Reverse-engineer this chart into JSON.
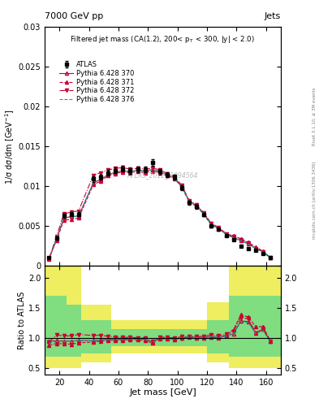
{
  "title_top": "7000 GeV pp",
  "title_right": "Jets",
  "annotation": "Filtered jet mass (CA(1.2), 200< p$_\\mathrm{T}$ < 300, |y| < 2.0)",
  "rivet_label": "Rivet 3.1.10, ≥ 3M events",
  "mcplots_label": "mcplots.cern.ch [arXiv:1306.3436]",
  "watermark": "ATLAS_2012_I1094564",
  "xlabel": "Jet mass [GeV]",
  "ylabel": "1/σ dσ/dm [GeV$^{-1}$]",
  "ylabel_ratio": "Ratio to ATLAS",
  "xlim": [
    10,
    170
  ],
  "ylim_main": [
    0,
    0.03
  ],
  "ylim_ratio": [
    0.4,
    2.2
  ],
  "yticks_main": [
    0,
    0.005,
    0.01,
    0.015,
    0.02,
    0.025,
    0.03
  ],
  "yticks_ratio": [
    0.5,
    1.0,
    1.5,
    2.0
  ],
  "atlas_x": [
    13,
    18,
    23,
    28,
    33,
    43,
    48,
    53,
    58,
    63,
    68,
    73,
    78,
    83,
    88,
    93,
    98,
    103,
    108,
    113,
    118,
    123,
    128,
    133,
    138,
    143,
    148,
    153,
    158,
    163
  ],
  "atlas_y": [
    0.001,
    0.0035,
    0.0063,
    0.0065,
    0.0065,
    0.0109,
    0.01115,
    0.0117,
    0.012,
    0.0122,
    0.01195,
    0.01215,
    0.0121,
    0.01295,
    0.01185,
    0.01145,
    0.01115,
    0.00985,
    0.00795,
    0.00745,
    0.00645,
    0.005,
    0.00465,
    0.0038,
    0.0033,
    0.00245,
    0.00218,
    0.002,
    0.00155,
    0.00105
  ],
  "atlas_yerr": [
    0.0001,
    0.0002,
    0.00025,
    0.00025,
    0.00025,
    0.00035,
    0.00035,
    0.00035,
    0.00035,
    0.00035,
    0.00035,
    0.00035,
    0.00035,
    0.0004,
    0.00035,
    0.00035,
    0.00035,
    0.0003,
    0.00025,
    0.00025,
    0.00022,
    0.00018,
    0.00018,
    0.00015,
    0.00013,
    0.00012,
    0.0001,
    0.0001,
    8e-05,
    6e-05
  ],
  "p370_x": [
    13,
    18,
    23,
    28,
    33,
    43,
    48,
    53,
    58,
    63,
    68,
    73,
    78,
    83,
    88,
    93,
    98,
    103,
    108,
    113,
    118,
    123,
    128,
    133,
    138,
    143,
    148,
    153,
    158,
    163
  ],
  "p370_y": [
    0.00095,
    0.00335,
    0.006,
    0.0062,
    0.00625,
    0.01045,
    0.01085,
    0.01145,
    0.01175,
    0.01195,
    0.01185,
    0.012,
    0.0119,
    0.0121,
    0.0119,
    0.01145,
    0.01105,
    0.0099,
    0.00815,
    0.00755,
    0.00655,
    0.00515,
    0.00475,
    0.00395,
    0.00355,
    0.00315,
    0.00278,
    0.00218,
    0.00178,
    0.001
  ],
  "p371_y": [
    0.00088,
    0.0032,
    0.0057,
    0.00585,
    0.006,
    0.0102,
    0.01065,
    0.0113,
    0.0116,
    0.0118,
    0.0117,
    0.01182,
    0.0117,
    0.0119,
    0.01175,
    0.0113,
    0.01095,
    0.00985,
    0.00805,
    0.00745,
    0.00645,
    0.0051,
    0.00465,
    0.004,
    0.00378,
    0.0034,
    0.00295,
    0.00238,
    0.00185,
    0.001
  ],
  "p372_y": [
    0.00094,
    0.00368,
    0.00655,
    0.00675,
    0.0069,
    0.0114,
    0.0117,
    0.01205,
    0.01224,
    0.01235,
    0.01215,
    0.01225,
    0.01215,
    0.01225,
    0.0121,
    0.0116,
    0.0112,
    0.0101,
    0.0082,
    0.00765,
    0.00665,
    0.0053,
    0.00485,
    0.00405,
    0.00368,
    0.0033,
    0.00288,
    0.00218,
    0.00178,
    0.001
  ],
  "p376_y": [
    0.00092,
    0.00332,
    0.00598,
    0.00618,
    0.00622,
    0.01042,
    0.01082,
    0.01142,
    0.01175,
    0.01194,
    0.01183,
    0.01198,
    0.01188,
    0.01208,
    0.01188,
    0.01142,
    0.01102,
    0.00988,
    0.00812,
    0.00752,
    0.00652,
    0.00513,
    0.00472,
    0.00393,
    0.00353,
    0.00313,
    0.00275,
    0.00215,
    0.00175,
    0.00098
  ],
  "color_370": "#cc0033",
  "color_371": "#cc0033",
  "color_372": "#cc0033",
  "color_376": "#00aaaa",
  "green_color": "#80dd80",
  "yellow_color": "#eeee60",
  "band_bins": [
    {
      "xlo": 10,
      "xhi": 25,
      "ylo": 0.5,
      "yhi": 2.2,
      "inner_lo": 0.7,
      "inner_hi": 1.7
    },
    {
      "xlo": 25,
      "xhi": 35,
      "ylo": 0.5,
      "yhi": 2.2,
      "inner_lo": 0.7,
      "inner_hi": 1.55
    },
    {
      "xlo": 35,
      "xhi": 55,
      "ylo": 0.6,
      "yhi": 1.55,
      "inner_lo": 0.75,
      "inner_hi": 1.3
    },
    {
      "xlo": 55,
      "xhi": 120,
      "ylo": 0.75,
      "yhi": 1.3,
      "inner_lo": 0.87,
      "inner_hi": 1.15
    },
    {
      "xlo": 120,
      "xhi": 135,
      "ylo": 0.6,
      "yhi": 1.6,
      "inner_lo": 0.75,
      "inner_hi": 1.3
    },
    {
      "xlo": 135,
      "xhi": 145,
      "ylo": 0.5,
      "yhi": 2.2,
      "inner_lo": 0.7,
      "inner_hi": 1.7
    },
    {
      "xlo": 145,
      "xhi": 170,
      "ylo": 0.5,
      "yhi": 2.2,
      "inner_lo": 0.7,
      "inner_hi": 1.7
    }
  ],
  "ratio_370": [
    0.95,
    0.957,
    0.952,
    0.954,
    0.962,
    0.959,
    0.974,
    0.979,
    0.979,
    0.98,
    0.992,
    0.988,
    0.983,
    0.934,
    1.004,
    1.0,
    0.991,
    1.005,
    1.025,
    1.013,
    1.016,
    1.03,
    1.022,
    1.039,
    1.076,
    1.286,
    1.275,
    1.09,
    1.148,
    0.952
  ],
  "ratio_371": [
    0.88,
    0.914,
    0.905,
    0.9,
    0.923,
    0.936,
    0.955,
    0.966,
    0.967,
    0.967,
    0.979,
    0.973,
    0.967,
    0.918,
    0.992,
    0.987,
    0.982,
    1.0,
    1.013,
    1.0,
    1.0,
    1.02,
    1.0,
    1.053,
    1.145,
    1.388,
    1.353,
    1.19,
    1.194,
    0.952
  ],
  "ratio_372": [
    0.94,
    1.051,
    1.04,
    1.038,
    1.062,
    1.046,
    1.049,
    1.03,
    1.02,
    1.012,
    1.017,
    1.008,
    1.004,
    0.946,
    1.021,
    1.013,
    1.004,
    1.025,
    1.031,
    1.027,
    1.031,
    1.06,
    1.043,
    1.066,
    1.115,
    1.347,
    1.321,
    1.09,
    1.148,
    0.952
  ],
  "ratio_376": [
    0.92,
    0.949,
    0.949,
    0.951,
    0.957,
    0.957,
    0.97,
    0.977,
    0.979,
    0.978,
    0.991,
    0.986,
    0.981,
    0.932,
    1.003,
    0.998,
    0.988,
    1.003,
    1.022,
    1.009,
    1.011,
    1.026,
    1.015,
    1.034,
    1.07,
    1.276,
    1.262,
    1.077,
    1.129,
    0.933
  ]
}
